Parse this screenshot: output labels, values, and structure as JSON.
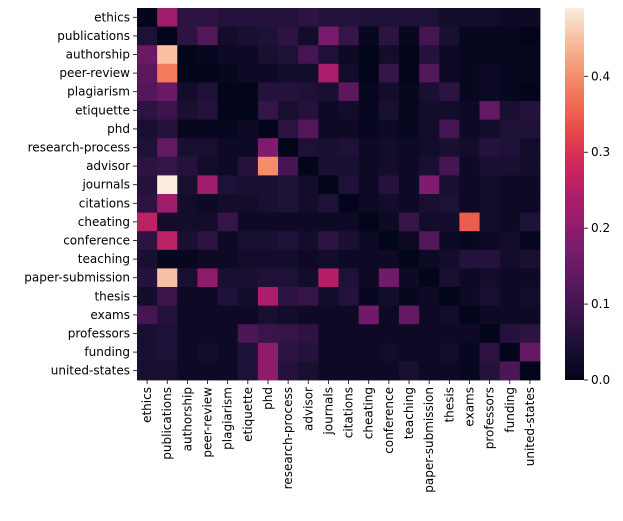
{
  "chart_data": {
    "type": "heatmap",
    "colormap": "rocket",
    "title": "",
    "xlabel": "",
    "ylabel": "",
    "x_labels": [
      "ethics",
      "publications",
      "authorship",
      "peer-review",
      "plagiarism",
      "etiquette",
      "phd",
      "research-process",
      "advisor",
      "journals",
      "citations",
      "cheating",
      "conference",
      "teaching",
      "paper-submission",
      "thesis",
      "exams",
      "professors",
      "funding",
      "united-states"
    ],
    "y_labels": [
      "ethics",
      "publications",
      "authorship",
      "peer-review",
      "plagiarism",
      "etiquette",
      "phd",
      "research-process",
      "advisor",
      "journals",
      "citations",
      "cheating",
      "conference",
      "teaching",
      "paper-submission",
      "thesis",
      "exams",
      "professors",
      "funding",
      "united-states"
    ],
    "colorbar": {
      "min": 0.0,
      "max": 0.49,
      "ticks": [
        0.0,
        0.1,
        0.2,
        0.3,
        0.4
      ],
      "tick_labels": [
        "0.0",
        "0.1",
        "0.2",
        "0.3",
        "0.4"
      ]
    },
    "values": [
      [
        0.0,
        0.22,
        0.07,
        0.07,
        0.06,
        0.06,
        0.06,
        0.06,
        0.07,
        0.06,
        0.06,
        0.05,
        0.05,
        0.05,
        0.05,
        0.03,
        0.03,
        0.03,
        0.02,
        0.02
      ],
      [
        0.05,
        0.0,
        0.07,
        0.12,
        0.03,
        0.04,
        0.05,
        0.07,
        0.03,
        0.17,
        0.08,
        0.01,
        0.07,
        0.01,
        0.1,
        0.04,
        0.01,
        0.01,
        0.01,
        0.0
      ],
      [
        0.15,
        0.45,
        0.0,
        0.01,
        0.02,
        0.02,
        0.04,
        0.05,
        0.1,
        0.05,
        0.02,
        0.0,
        0.03,
        0.0,
        0.06,
        0.02,
        0.01,
        0.01,
        0.01,
        0.01
      ],
      [
        0.13,
        0.38,
        0.0,
        0.0,
        0.01,
        0.02,
        0.02,
        0.03,
        0.03,
        0.24,
        0.03,
        0.0,
        0.08,
        0.0,
        0.12,
        0.02,
        0.01,
        0.02,
        0.01,
        0.01
      ],
      [
        0.12,
        0.15,
        0.03,
        0.05,
        0.0,
        0.0,
        0.06,
        0.06,
        0.05,
        0.04,
        0.13,
        0.01,
        0.03,
        0.01,
        0.04,
        0.07,
        0.01,
        0.02,
        0.01,
        0.0
      ],
      [
        0.07,
        0.09,
        0.04,
        0.06,
        0.0,
        0.0,
        0.08,
        0.04,
        0.06,
        0.02,
        0.03,
        0.01,
        0.04,
        0.01,
        0.03,
        0.03,
        0.02,
        0.14,
        0.04,
        0.06
      ],
      [
        0.04,
        0.06,
        0.01,
        0.01,
        0.01,
        0.02,
        0.0,
        0.07,
        0.12,
        0.02,
        0.02,
        0.01,
        0.02,
        0.01,
        0.03,
        0.1,
        0.02,
        0.03,
        0.05,
        0.05
      ],
      [
        0.05,
        0.14,
        0.04,
        0.04,
        0.02,
        0.02,
        0.18,
        0.0,
        0.05,
        0.04,
        0.05,
        0.02,
        0.03,
        0.02,
        0.03,
        0.04,
        0.03,
        0.06,
        0.05,
        0.03
      ],
      [
        0.07,
        0.08,
        0.06,
        0.03,
        0.02,
        0.06,
        0.4,
        0.1,
        0.0,
        0.04,
        0.04,
        0.02,
        0.03,
        0.02,
        0.04,
        0.1,
        0.02,
        0.04,
        0.04,
        0.03
      ],
      [
        0.06,
        0.49,
        0.04,
        0.22,
        0.05,
        0.04,
        0.04,
        0.05,
        0.03,
        0.0,
        0.05,
        0.02,
        0.06,
        0.02,
        0.18,
        0.04,
        0.02,
        0.03,
        0.02,
        0.02
      ],
      [
        0.07,
        0.22,
        0.03,
        0.02,
        0.03,
        0.03,
        0.04,
        0.05,
        0.03,
        0.05,
        0.0,
        0.02,
        0.03,
        0.02,
        0.04,
        0.05,
        0.02,
        0.03,
        0.02,
        0.02
      ],
      [
        0.26,
        0.03,
        0.03,
        0.03,
        0.08,
        0.02,
        0.02,
        0.02,
        0.02,
        0.02,
        0.02,
        0.0,
        0.02,
        0.08,
        0.03,
        0.03,
        0.35,
        0.03,
        0.02,
        0.05
      ],
      [
        0.07,
        0.26,
        0.04,
        0.07,
        0.02,
        0.04,
        0.04,
        0.05,
        0.03,
        0.07,
        0.04,
        0.02,
        0.0,
        0.02,
        0.12,
        0.02,
        0.01,
        0.02,
        0.03,
        0.01
      ],
      [
        0.04,
        0.01,
        0.01,
        0.02,
        0.02,
        0.03,
        0.03,
        0.03,
        0.02,
        0.03,
        0.02,
        0.02,
        0.02,
        0.0,
        0.02,
        0.03,
        0.06,
        0.06,
        0.03,
        0.04
      ],
      [
        0.06,
        0.45,
        0.04,
        0.2,
        0.04,
        0.04,
        0.05,
        0.05,
        0.03,
        0.25,
        0.05,
        0.02,
        0.16,
        0.02,
        0.0,
        0.04,
        0.02,
        0.03,
        0.02,
        0.02
      ],
      [
        0.03,
        0.09,
        0.02,
        0.02,
        0.05,
        0.03,
        0.24,
        0.07,
        0.08,
        0.03,
        0.06,
        0.01,
        0.03,
        0.01,
        0.02,
        0.0,
        0.02,
        0.04,
        0.02,
        0.03
      ],
      [
        0.1,
        0.06,
        0.02,
        0.02,
        0.02,
        0.02,
        0.04,
        0.03,
        0.02,
        0.02,
        0.02,
        0.16,
        0.02,
        0.14,
        0.02,
        0.03,
        0.0,
        0.02,
        0.02,
        0.02
      ],
      [
        0.04,
        0.05,
        0.02,
        0.02,
        0.02,
        0.11,
        0.09,
        0.08,
        0.07,
        0.02,
        0.02,
        0.02,
        0.02,
        0.02,
        0.02,
        0.02,
        0.02,
        0.0,
        0.06,
        0.07
      ],
      [
        0.04,
        0.05,
        0.02,
        0.03,
        0.02,
        0.05,
        0.2,
        0.07,
        0.06,
        0.02,
        0.02,
        0.02,
        0.03,
        0.02,
        0.02,
        0.03,
        0.01,
        0.07,
        0.0,
        0.14
      ],
      [
        0.04,
        0.04,
        0.02,
        0.02,
        0.02,
        0.05,
        0.2,
        0.06,
        0.04,
        0.02,
        0.02,
        0.02,
        0.02,
        0.04,
        0.02,
        0.02,
        0.01,
        0.06,
        0.11,
        0.0
      ]
    ]
  }
}
